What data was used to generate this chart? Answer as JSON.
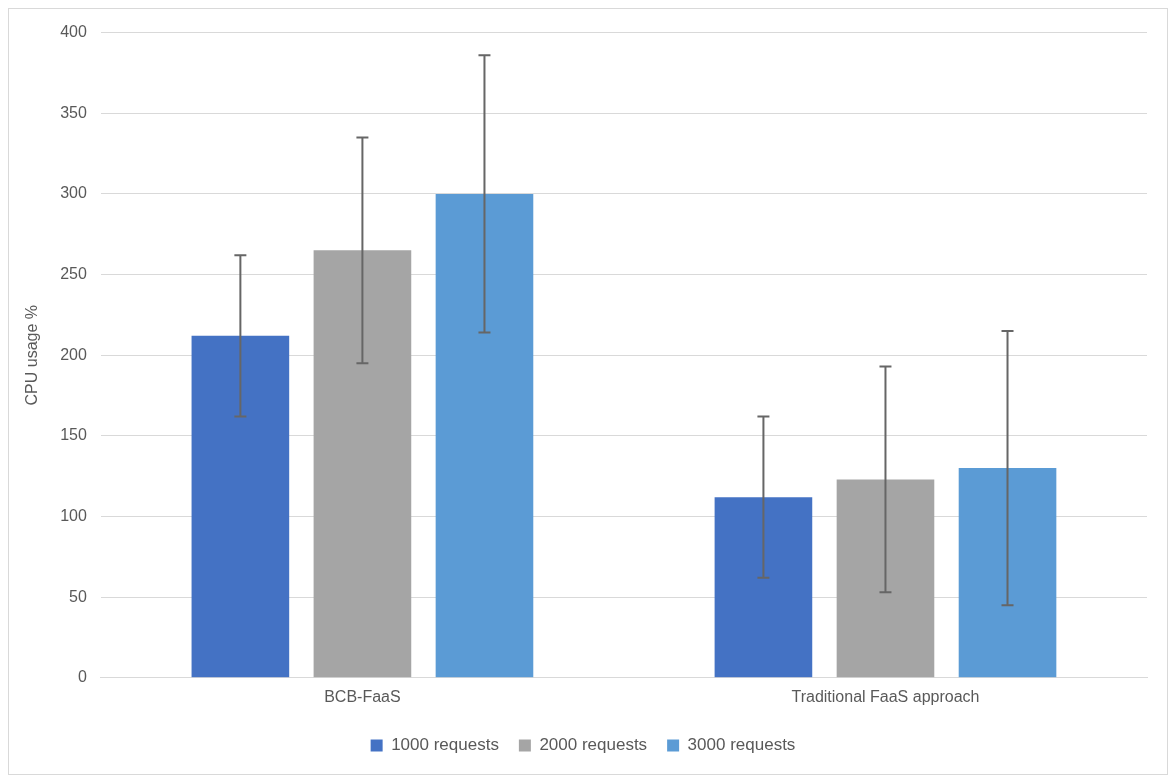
{
  "chart_data": {
    "type": "bar",
    "ylabel": "CPU usage %",
    "categories": [
      "BCB-FaaS",
      "Traditional FaaS approach"
    ],
    "series": [
      {
        "name": "1000 requests",
        "color": "#4472c4",
        "values": [
          212,
          112
        ],
        "errors": [
          50,
          50
        ]
      },
      {
        "name": "2000 requests",
        "color": "#a5a5a5",
        "values": [
          265,
          123
        ],
        "errors": [
          70,
          70
        ]
      },
      {
        "name": "3000 requests",
        "color": "#5b9bd5",
        "values": [
          300,
          130
        ],
        "errors": [
          86,
          85
        ]
      }
    ],
    "ylim": [
      0,
      400
    ],
    "yticks": [
      0,
      50,
      100,
      150,
      200,
      250,
      300,
      350,
      400
    ],
    "grid": "y",
    "legend": "bottom"
  }
}
